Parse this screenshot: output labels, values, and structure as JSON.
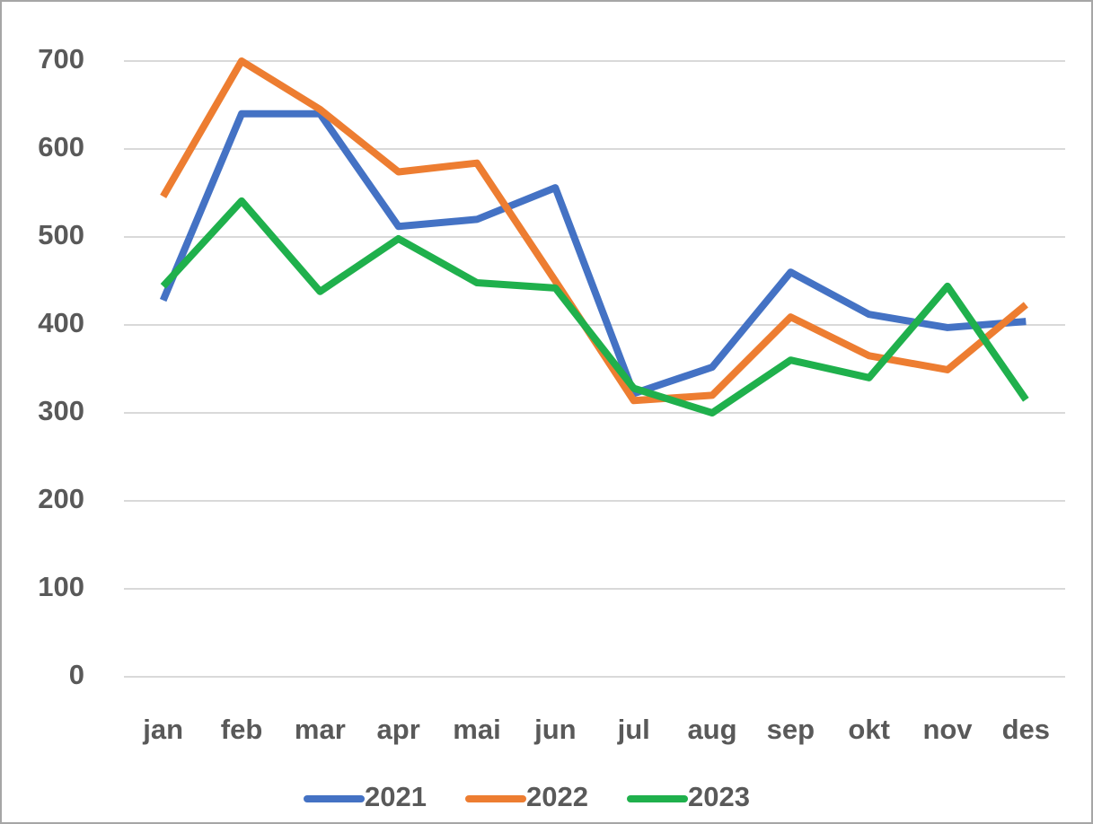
{
  "chart_data": {
    "type": "line",
    "categories": [
      "jan",
      "feb",
      "mar",
      "apr",
      "mai",
      "jun",
      "jul",
      "aug",
      "sep",
      "okt",
      "nov",
      "des"
    ],
    "series": [
      {
        "name": "2021",
        "color": "#4472c4",
        "values": [
          428,
          640,
          640,
          512,
          520,
          556,
          322,
          352,
          460,
          412,
          397,
          404
        ]
      },
      {
        "name": "2022",
        "color": "#ed7d31",
        "values": [
          546,
          700,
          645,
          574,
          584,
          450,
          314,
          320,
          409,
          365,
          349,
          423
        ]
      },
      {
        "name": "2023",
        "color": "#1fb04c",
        "values": [
          444,
          541,
          438,
          498,
          448,
          442,
          328,
          300,
          360,
          340,
          444,
          315
        ]
      }
    ],
    "ylim": [
      0,
      700
    ],
    "yticks": [
      0,
      100,
      200,
      300,
      400,
      500,
      600,
      700
    ],
    "grid": true,
    "legend": "bottom"
  }
}
